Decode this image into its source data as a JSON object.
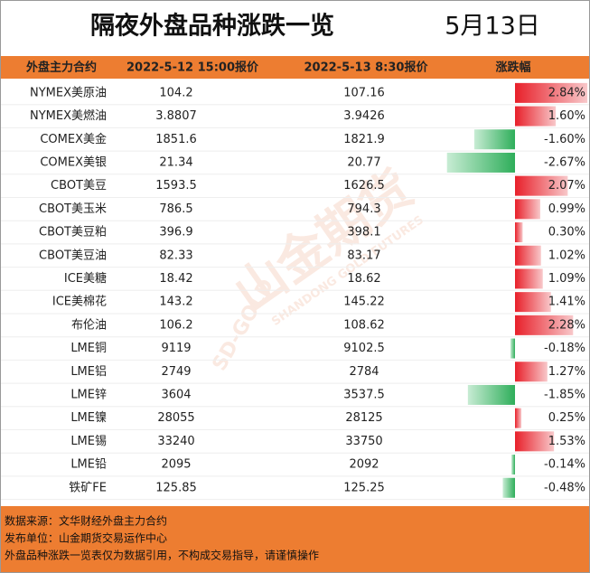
{
  "header": {
    "title": "隔夜外盘品种涨跌一览",
    "date": "5月13日"
  },
  "table": {
    "columns": [
      "外盘主力合约",
      "2022-5-12 15:00报价",
      "2022-5-13 8:30报价",
      "涨跌幅"
    ],
    "rows": [
      [
        "NYMEX美原油",
        "104.2",
        "107.16"
      ],
      [
        "NYMEX美燃油",
        "3.8807",
        "3.9426"
      ],
      [
        "COMEX美金",
        "1851.6",
        "1821.9"
      ],
      [
        "COMEX美银",
        "21.34",
        "20.77"
      ],
      [
        "CBOT美豆",
        "1593.5",
        "1626.5"
      ],
      [
        "CBOT美玉米",
        "786.5",
        "794.3"
      ],
      [
        "CBOT美豆粕",
        "396.9",
        "398.1"
      ],
      [
        "CBOT美豆油",
        "82.33",
        "83.17"
      ],
      [
        "ICE美糖",
        "18.42",
        "18.62"
      ],
      [
        "ICE美棉花",
        "143.2",
        "145.22"
      ],
      [
        "布伦油",
        "106.2",
        "108.62"
      ],
      [
        "LME铜",
        "9119",
        "9102.5"
      ],
      [
        "LME铝",
        "2749",
        "2784"
      ],
      [
        "LME锌",
        "3604",
        "3537.5"
      ],
      [
        "LME镍",
        "28055",
        "28125"
      ],
      [
        "LME锡",
        "33240",
        "33750"
      ],
      [
        "LME铅",
        "2095",
        "2092"
      ],
      [
        "铁矿FE",
        "125.85",
        "125.25"
      ]
    ],
    "changes": {
      "values": [
        2.84,
        1.6,
        -1.6,
        -2.67,
        2.07,
        0.99,
        0.3,
        1.02,
        1.09,
        1.41,
        2.28,
        -0.18,
        1.27,
        -1.85,
        0.25,
        1.53,
        -0.14,
        -0.48
      ],
      "value_labels": [
        "2.84%",
        "1.60%",
        "-1.60%",
        "-2.67%",
        "2.07%",
        "0.99%",
        "0.30%",
        "1.02%",
        "1.09%",
        "1.41%",
        "2.28%",
        "-0.18%",
        "1.27%",
        "-1.85%",
        "0.25%",
        "1.53%",
        "-0.14%",
        "-0.48%"
      ]
    }
  },
  "watermark": {
    "brand": "山金期货",
    "english": "SHANDONG GOLD FUTURES",
    "logo": "SD-GOLD"
  },
  "footer": {
    "lines": [
      "数据来源：文华财经外盘主力合约",
      "发布单位：山金期货交易运作中心",
      "外盘品种涨跌一览表仅为数据引用，不构成交易指导，请谨慎操作"
    ]
  }
}
